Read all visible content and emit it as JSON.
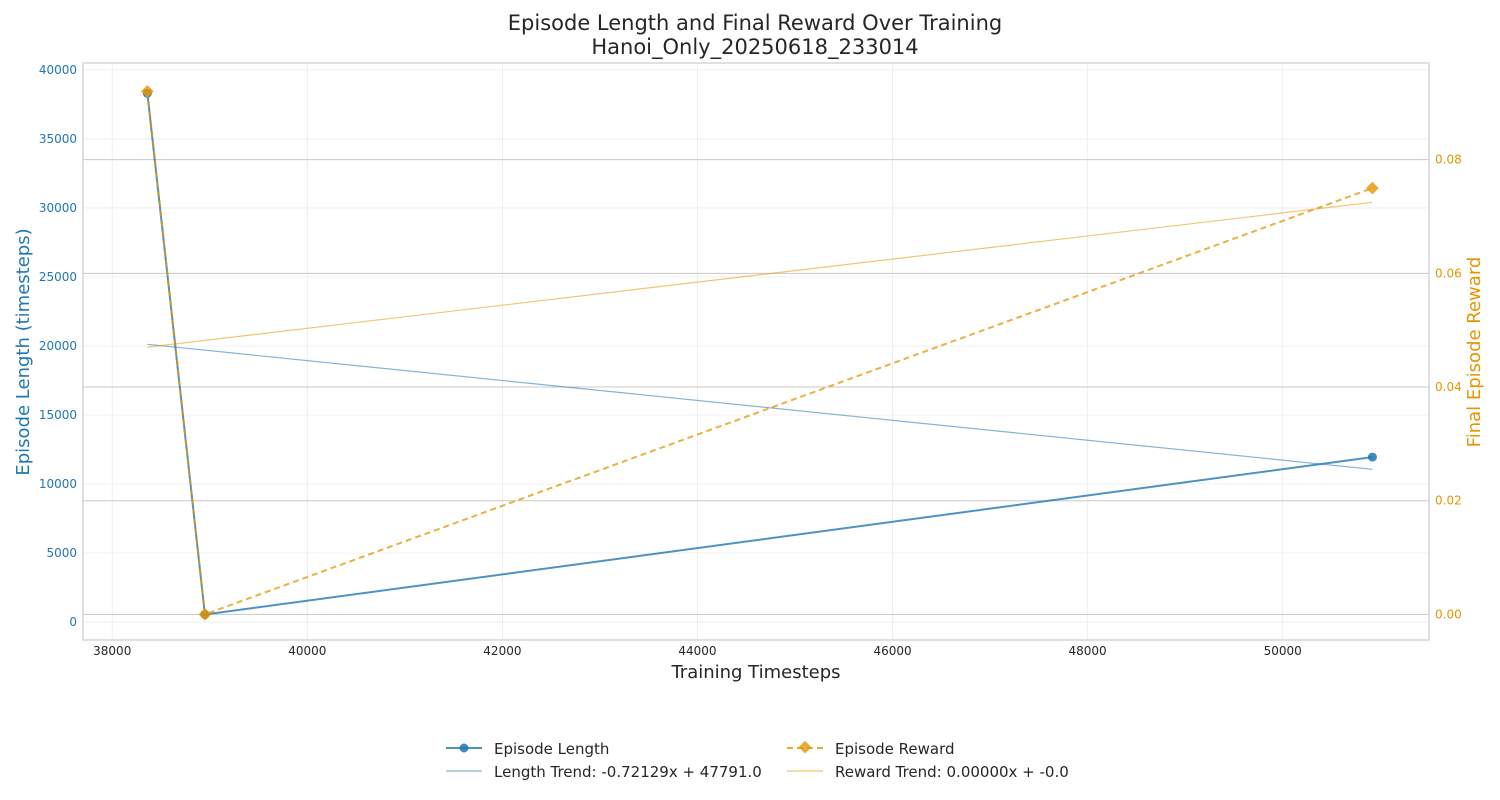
{
  "chart_data": {
    "type": "line",
    "title_lines": [
      "Episode Length and Final Reward Over Training",
      "Hanoi_Only_20250618_233014"
    ],
    "xlabel": "Training Timesteps",
    "ylabel_left": "Episode Length (timesteps)",
    "ylabel_right": "Final Episode Reward",
    "xlim": [
      37700,
      51500
    ],
    "ylim_left": [
      -1300,
      40500
    ],
    "ylim_right": [
      -0.0045,
      0.097
    ],
    "x_ticks": [
      {
        "value": 38000,
        "label": "38000"
      },
      {
        "value": 40000,
        "label": "40000"
      },
      {
        "value": 42000,
        "label": "42000"
      },
      {
        "value": 44000,
        "label": "44000"
      },
      {
        "value": 46000,
        "label": "46000"
      },
      {
        "value": 48000,
        "label": "48000"
      },
      {
        "value": 50000,
        "label": "50000"
      }
    ],
    "y_left_ticks": [
      {
        "value": 0,
        "label": "0"
      },
      {
        "value": 5000,
        "label": "5000"
      },
      {
        "value": 10000,
        "label": "10000"
      },
      {
        "value": 15000,
        "label": "15000"
      },
      {
        "value": 20000,
        "label": "20000"
      },
      {
        "value": 25000,
        "label": "25000"
      },
      {
        "value": 30000,
        "label": "30000"
      },
      {
        "value": 35000,
        "label": "35000"
      },
      {
        "value": 40000,
        "label": "40000"
      }
    ],
    "y_right_ticks": [
      {
        "value": 0.0,
        "label": "0.00"
      },
      {
        "value": 0.02,
        "label": "0.02"
      },
      {
        "value": 0.04,
        "label": "0.04"
      },
      {
        "value": 0.06,
        "label": "0.06"
      },
      {
        "value": 0.08,
        "label": "0.08"
      }
    ],
    "grid": true,
    "legend_placement": "bottom-center",
    "series": [
      {
        "name": "Episode Length",
        "axis": "left",
        "style": "solid-marker-circle",
        "color": "#1f77b4",
        "x": [
          38360,
          38950,
          50920
        ],
        "y": [
          38300,
          550,
          11950
        ]
      },
      {
        "name": "Episode Reward",
        "axis": "right",
        "style": "dashed-marker-diamond",
        "color": "#e69500",
        "x": [
          38360,
          38950,
          50920
        ],
        "y": [
          0.092,
          0.0,
          0.075
        ]
      },
      {
        "name": "Length Trend: -0.72129x + 47791.0",
        "axis": "left",
        "style": "thin-trend",
        "color": "#1f77b4",
        "x": [
          38360,
          50920
        ],
        "y": [
          20122,
          11063
        ]
      },
      {
        "name": "Reward Trend: 0.00000x + -0.0",
        "axis": "right",
        "style": "thin-trend",
        "color": "#e69500",
        "x": [
          38360,
          50920
        ],
        "y": [
          0.047,
          0.0725
        ]
      }
    ]
  }
}
